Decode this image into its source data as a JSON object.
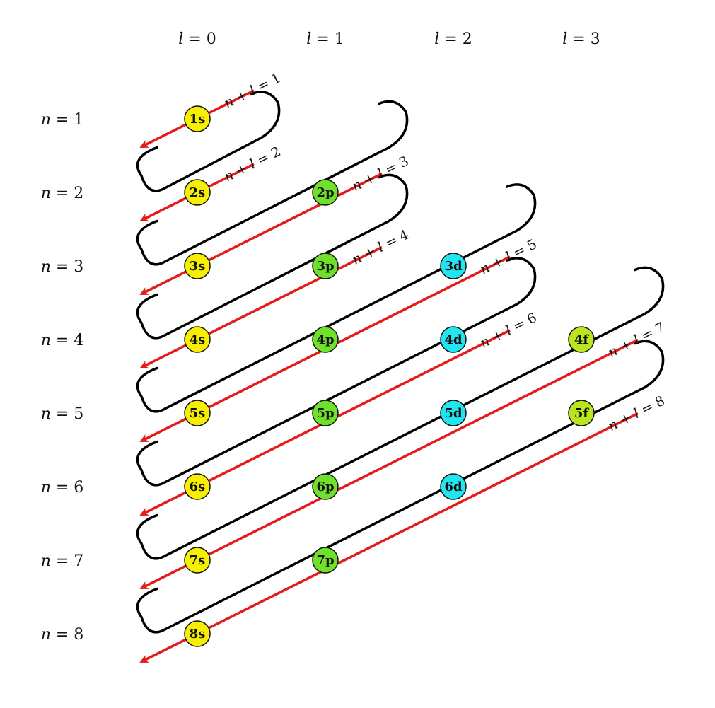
{
  "diagram": {
    "l_labels": [
      {
        "var": "l",
        "value": "0"
      },
      {
        "var": "l",
        "value": "1"
      },
      {
        "var": "l",
        "value": "2"
      },
      {
        "var": "l",
        "value": "3"
      }
    ],
    "n_labels": [
      {
        "var": "n",
        "value": "1"
      },
      {
        "var": "n",
        "value": "2"
      },
      {
        "var": "n",
        "value": "3"
      },
      {
        "var": "n",
        "value": "4"
      },
      {
        "var": "n",
        "value": "5"
      },
      {
        "var": "n",
        "value": "6"
      },
      {
        "var": "n",
        "value": "7"
      },
      {
        "var": "n",
        "value": "8"
      }
    ],
    "diagonal_labels": [
      "1",
      "2",
      "3",
      "4",
      "5",
      "6",
      "7",
      "8"
    ],
    "orbitals": [
      {
        "label": "1s",
        "n": 1,
        "l": 0
      },
      {
        "label": "2s",
        "n": 2,
        "l": 0
      },
      {
        "label": "2p",
        "n": 2,
        "l": 1
      },
      {
        "label": "3s",
        "n": 3,
        "l": 0
      },
      {
        "label": "3p",
        "n": 3,
        "l": 1
      },
      {
        "label": "3d",
        "n": 3,
        "l": 2
      },
      {
        "label": "4s",
        "n": 4,
        "l": 0
      },
      {
        "label": "4p",
        "n": 4,
        "l": 1
      },
      {
        "label": "4d",
        "n": 4,
        "l": 2
      },
      {
        "label": "4f",
        "n": 4,
        "l": 3
      },
      {
        "label": "5s",
        "n": 5,
        "l": 0
      },
      {
        "label": "5p",
        "n": 5,
        "l": 1
      },
      {
        "label": "5d",
        "n": 5,
        "l": 2
      },
      {
        "label": "5f",
        "n": 5,
        "l": 3
      },
      {
        "label": "6s",
        "n": 6,
        "l": 0
      },
      {
        "label": "6p",
        "n": 6,
        "l": 1
      },
      {
        "label": "6d",
        "n": 6,
        "l": 2
      },
      {
        "label": "7s",
        "n": 7,
        "l": 0
      },
      {
        "label": "7p",
        "n": 7,
        "l": 1
      },
      {
        "label": "8s",
        "n": 8,
        "l": 0
      }
    ],
    "colors": {
      "s": "#f6f000",
      "p": "#6fe12b",
      "d": "#22e5ef",
      "f": "#b9e61f",
      "arrow": "#e31b1b",
      "connector": "#000000"
    }
  }
}
